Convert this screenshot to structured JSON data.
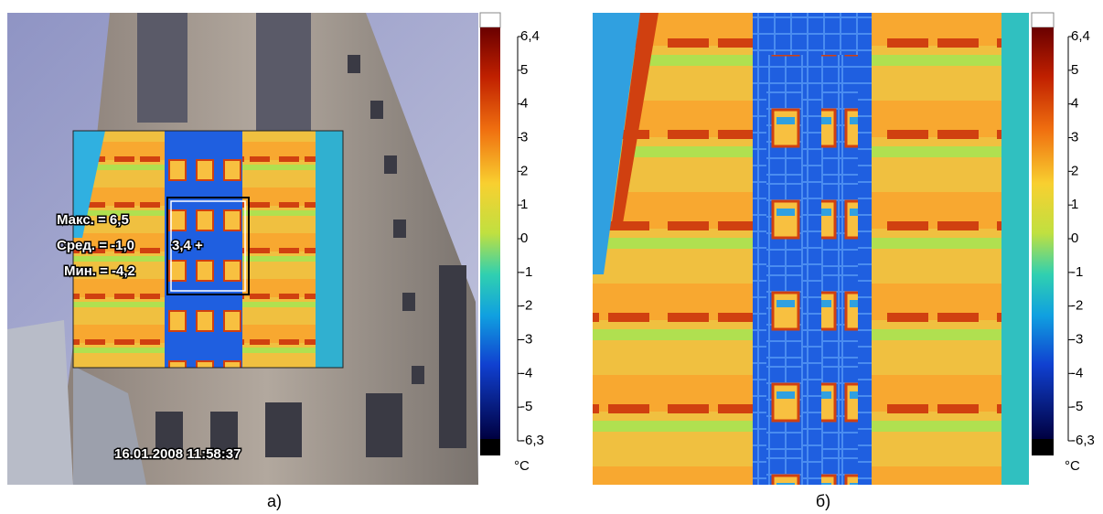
{
  "panels": [
    {
      "overlay": {
        "max": "Макс. = 6,5",
        "avg": "Сред. = -1,0",
        "min": "Мин. = -4,2",
        "spot": "3,4 +",
        "timestamp": "16.01.2008 11:58:37"
      },
      "colorbar": {
        "labels": [
          "6,4",
          "5",
          "4",
          "3",
          "2",
          "1",
          "0",
          "-1",
          "-2",
          "-3",
          "-4",
          "-5",
          "-6,3"
        ],
        "unit": "°C"
      },
      "caption": "а)"
    },
    {
      "colorbar": {
        "labels": [
          "6,4",
          "5",
          "4",
          "3",
          "2",
          "1",
          "0",
          "-1",
          "-2",
          "-3",
          "-4",
          "-5",
          "-6,3"
        ],
        "unit": "°C"
      },
      "caption": "б)"
    }
  ]
}
